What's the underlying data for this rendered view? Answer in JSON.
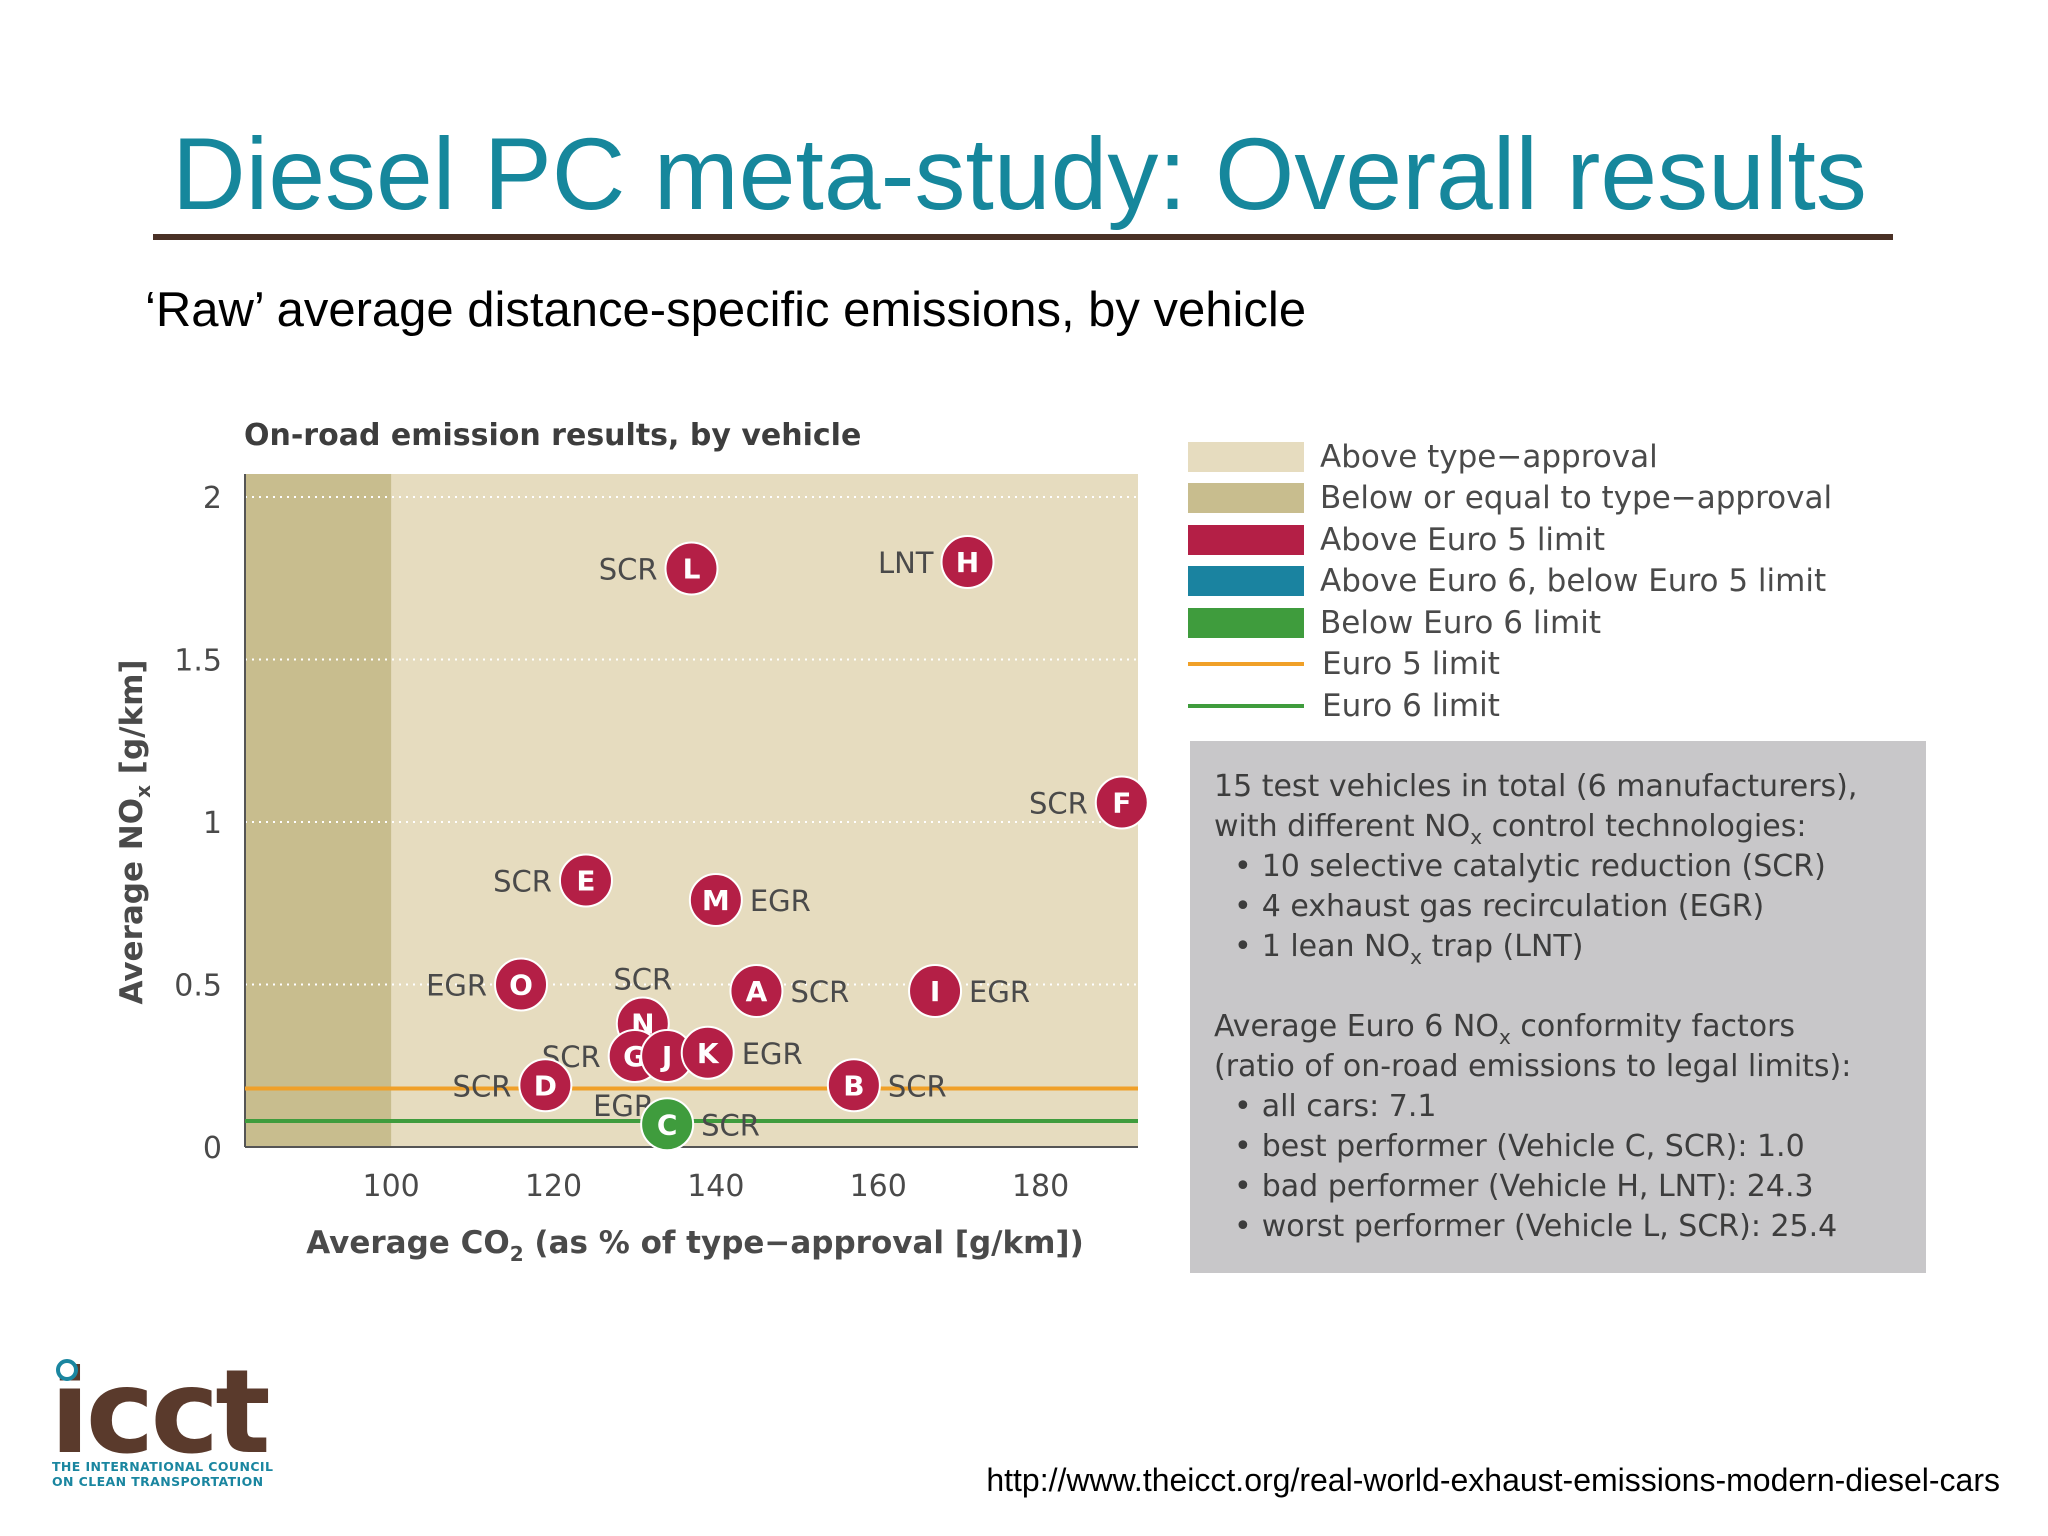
{
  "slide": {
    "title": "Diesel PC meta-study: Overall results",
    "subtitle": "‘Raw’ average distance-specific emissions, by vehicle",
    "url": "http://www.theicct.org/real-world-exhaust-emissions-modern-diesel-cars"
  },
  "logo": {
    "mark": "icct",
    "line1": "THE INTERNATIONAL COUNCIL",
    "line2": "ON CLEAN TRANSPORTATION"
  },
  "colors": {
    "title": "#16879c",
    "above_type_approval": "#e6dcbf",
    "below_type_approval": "#c8bd8e",
    "above_euro5": "#b41f46",
    "above_euro6_below_euro5": "#1a83a0",
    "below_euro6": "#3f9c3d",
    "euro5_line": "#f0a028",
    "euro6_line": "#3f9c3d",
    "infobox": "#c8c7c9"
  },
  "legend": [
    {
      "label": "Above type−approval",
      "kind": "swatch",
      "color": "#e6dcbf"
    },
    {
      "label": "Below or equal to type−approval",
      "kind": "swatch",
      "color": "#c8bd8e"
    },
    {
      "label": "Above Euro 5 limit",
      "kind": "swatch",
      "color": "#b41f46"
    },
    {
      "label": "Above Euro 6, below Euro 5 limit",
      "kind": "swatch",
      "color": "#1a83a0"
    },
    {
      "label": "Below Euro 6 limit",
      "kind": "swatch",
      "color": "#3f9c3d"
    },
    {
      "label": "Euro 5 limit",
      "kind": "line",
      "color": "#f0a028"
    },
    {
      "label": "Euro 6 limit",
      "kind": "line",
      "color": "#3f9c3d"
    }
  ],
  "info": {
    "intro_1": "15 test vehicles in total (6 manufacturers),",
    "intro_2a": "with different NO",
    "intro_2b": "x",
    "intro_2c": " control technologies:",
    "tech_1": "10 selective catalytic reduction (SCR)",
    "tech_2": "4 exhaust gas recirculation (EGR)",
    "tech_3a": "1 lean NO",
    "tech_3b": "x",
    "tech_3c": " trap (LNT)",
    "cf_1a": "Average Euro 6 NO",
    "cf_1b": "x",
    "cf_1c": " conformity factors",
    "cf_2": "(ratio of on-road emissions to legal limits):",
    "cf_item_1": "all cars: 7.1",
    "cf_item_2": "best performer (Vehicle C, SCR): 1.0",
    "cf_item_3": "bad performer (Vehicle H, LNT): 24.3",
    "cf_item_4": "worst performer (Vehicle L, SCR): 25.4"
  },
  "chart_data": {
    "type": "scatter",
    "title": "On-road emission results, by vehicle",
    "xlabel_main": "Average CO",
    "xlabel_sub": "2",
    "xlabel_rest": " (as % of type−approval [g/km])",
    "ylabel_main": "Average NO",
    "ylabel_sub": "x",
    "ylabel_rest": " [g/km]",
    "xlim": [
      82,
      192
    ],
    "ylim": [
      0,
      2
    ],
    "xticks": [
      100,
      120,
      140,
      160,
      180
    ],
    "yticks": [
      {
        "value": 0,
        "label": "0"
      },
      {
        "value": 0.5,
        "label": "0.5"
      },
      {
        "value": 1,
        "label": "1"
      },
      {
        "value": 1.5,
        "label": "1.5"
      },
      {
        "value": 2,
        "label": "2"
      }
    ],
    "grid": "horizontal dotted",
    "type_approval_x": 100,
    "euro5_limit": 0.18,
    "euro6_limit": 0.08,
    "points": [
      {
        "id": "L",
        "x": 137,
        "y": 1.78,
        "tech": "SCR",
        "label_side": "left",
        "color": "#b41f46"
      },
      {
        "id": "H",
        "x": 171,
        "y": 1.8,
        "tech": "LNT",
        "label_side": "left",
        "color": "#b41f46"
      },
      {
        "id": "F",
        "x": 190,
        "y": 1.06,
        "tech": "SCR",
        "label_side": "left",
        "color": "#b41f46"
      },
      {
        "id": "E",
        "x": 124,
        "y": 0.82,
        "tech": "SCR",
        "label_side": "left",
        "color": "#b41f46"
      },
      {
        "id": "M",
        "x": 140,
        "y": 0.76,
        "tech": "EGR",
        "label_side": "right",
        "color": "#b41f46"
      },
      {
        "id": "O",
        "x": 116,
        "y": 0.5,
        "tech": "EGR",
        "label_side": "left",
        "color": "#b41f46"
      },
      {
        "id": "A",
        "x": 145,
        "y": 0.48,
        "tech": "SCR",
        "label_side": "right",
        "color": "#b41f46"
      },
      {
        "id": "I",
        "x": 167,
        "y": 0.48,
        "tech": "EGR",
        "label_side": "right",
        "color": "#b41f46"
      },
      {
        "id": "N",
        "x": 131,
        "y": 0.38,
        "tech": "SCR",
        "label_side": "above",
        "color": "#b41f46"
      },
      {
        "id": "G",
        "x": 130,
        "y": 0.28,
        "tech": "SCR",
        "label_side": "left",
        "color": "#b41f46"
      },
      {
        "id": "J",
        "x": 134,
        "y": 0.28,
        "tech": "",
        "label_side": "none",
        "color": "#b41f46"
      },
      {
        "id": "K",
        "x": 139,
        "y": 0.29,
        "tech": "EGR",
        "label_side": "right",
        "color": "#b41f46"
      },
      {
        "id": "D",
        "x": 119,
        "y": 0.19,
        "tech": "SCR",
        "label_side": "left",
        "color": "#b41f46"
      },
      {
        "id": "B",
        "x": 157,
        "y": 0.19,
        "tech": "SCR",
        "label_side": "right",
        "color": "#b41f46"
      },
      {
        "id": "C",
        "x": 134,
        "y": 0.07,
        "tech": "SCR",
        "label_side": "right",
        "color": "#3f9c3d"
      }
    ],
    "extra_labels": [
      {
        "text": "EGR",
        "x": 129,
        "y": 0.17
      }
    ]
  }
}
